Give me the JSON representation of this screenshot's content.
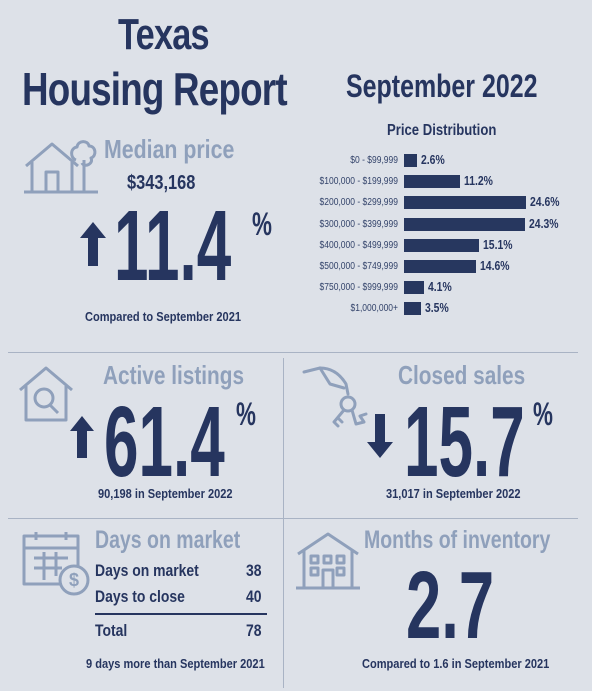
{
  "header": {
    "title_line1": "Texas",
    "title_line2": "Housing Report",
    "month": "September 2022"
  },
  "median_price": {
    "label": "Median price",
    "price": "$343,168",
    "change": "11.4",
    "percent_sign": "%",
    "direction": "up",
    "note": "Compared to September 2021"
  },
  "price_distribution": {
    "title": "Price Distribution"
  },
  "chart_data": {
    "type": "bar",
    "orientation": "horizontal",
    "title": "Price Distribution",
    "categories": [
      "$0 - $99,999",
      "$100,000 - $199,999",
      "$200,000 - $299,999",
      "$300,000 - $399,999",
      "$400,000 - $499,999",
      "$500,000 - $749,999",
      "$750,000 - $999,999",
      "$1,000,000+"
    ],
    "values": [
      2.6,
      11.2,
      24.6,
      24.3,
      15.1,
      14.6,
      4.1,
      3.5
    ],
    "labels": [
      "2.6%",
      "11.2%",
      "24.6%",
      "24.3%",
      "15.1%",
      "14.6%",
      "4.1%",
      "3.5%"
    ],
    "bar_color": "#27375f"
  },
  "active_listings": {
    "label": "Active listings",
    "change": "61.4",
    "percent_sign": "%",
    "direction": "up",
    "note": "90,198 in September 2022"
  },
  "closed_sales": {
    "label": "Closed sales",
    "change": "15.7",
    "percent_sign": "%",
    "direction": "down",
    "note": "31,017 in September 2022"
  },
  "days_on_market": {
    "label": "Days on market",
    "rows": [
      {
        "name": "Days on market",
        "value": "38"
      },
      {
        "name": "Days to close",
        "value": "40"
      }
    ],
    "total": {
      "name": "Total",
      "value": "78"
    },
    "note": "9 days more than September 2021"
  },
  "months_inventory": {
    "label": "Months of inventory",
    "value": "2.7",
    "note": "Compared to 1.6 in September 2021"
  },
  "colors": {
    "navy": "#26355f",
    "muted": "#8fa0bb",
    "background": "#dde1e8"
  }
}
